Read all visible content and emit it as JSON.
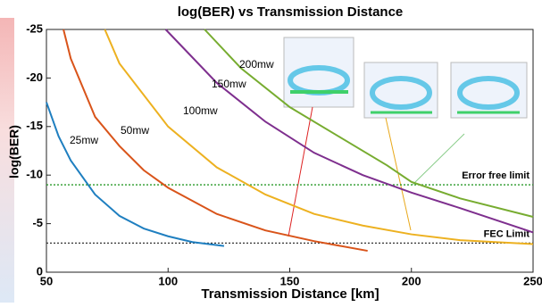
{
  "chart_data": {
    "type": "line",
    "title": "log(BER) vs Transmission Distance",
    "xlabel": "Transmission Distance [km]",
    "ylabel": "log(BER)",
    "xlim": [
      50,
      250
    ],
    "xticks": [
      50,
      100,
      150,
      200,
      250
    ],
    "ylim": [
      0,
      -25
    ],
    "yticks": [
      0,
      -5,
      -10,
      -15,
      -20,
      -25
    ],
    "series": [
      {
        "name": "25mw",
        "color": "#1f7fc0",
        "x": [
          50,
          55,
          60,
          70,
          80,
          90,
          100,
          110,
          123
        ],
        "values": [
          -17.5,
          -14,
          -11.5,
          -8,
          -5.8,
          -4.5,
          -3.7,
          -3.1,
          -2.7
        ]
      },
      {
        "name": "50mw",
        "color": "#d9541a",
        "x": [
          57,
          60,
          70,
          80,
          90,
          100,
          120,
          140,
          160,
          182
        ],
        "values": [
          -25,
          -22,
          -16,
          -13,
          -10.5,
          -8.7,
          -6,
          -4.3,
          -3.2,
          -2.2
        ]
      },
      {
        "name": "100mw",
        "color": "#edb120",
        "x": [
          74,
          80,
          100,
          120,
          140,
          160,
          180,
          200,
          220,
          250
        ],
        "values": [
          -25,
          -21.5,
          -15,
          -10.8,
          -8,
          -6,
          -4.8,
          -3.9,
          -3.3,
          -2.9
        ]
      },
      {
        "name": "150mw",
        "color": "#7e2f8e",
        "x": [
          99,
          120,
          140,
          160,
          180,
          200,
          220,
          250
        ],
        "values": [
          -25,
          -19.5,
          -15.5,
          -12.3,
          -10,
          -8.2,
          -6.6,
          -4.1
        ]
      },
      {
        "name": "200mw",
        "color": "#77ac30",
        "x": [
          115,
          130,
          150,
          170,
          190,
          200,
          220,
          250
        ],
        "values": [
          -25,
          -21,
          -17,
          -14,
          -11,
          -9.3,
          -7.6,
          -5.7
        ]
      }
    ],
    "hlines": [
      {
        "value": -9,
        "label": "Error free limit",
        "color": "#2a9a2a"
      },
      {
        "value": -3,
        "label": "FEC Limit",
        "color": "#333333"
      }
    ]
  }
}
